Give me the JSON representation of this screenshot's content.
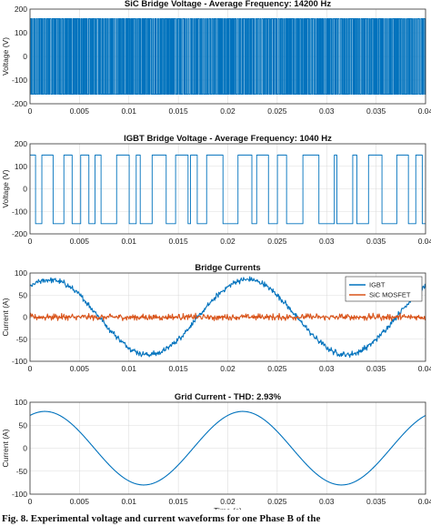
{
  "chart_data": [
    {
      "type": "line",
      "title": "SiC Bridge Voltage - Average Frequency: 14200 Hz",
      "xlabel": "",
      "ylabel": "Voltage (V)",
      "xlim": [
        0,
        0.04
      ],
      "ylim": [
        -200,
        200
      ],
      "xticks": [
        "0",
        "0.005",
        "0.01",
        "0.015",
        "0.02",
        "0.025",
        "0.03",
        "0.035",
        "0.04"
      ],
      "yticks": [
        "-200",
        "-100",
        "0",
        "100",
        "200"
      ],
      "grid": true,
      "series": [
        {
          "color": "#0072bd",
          "waveform": "pwm",
          "switching_frequency_hz": 14200,
          "levels": [
            160,
            -160
          ]
        }
      ]
    },
    {
      "type": "line",
      "title": "IGBT Bridge Voltage - Average Frequency: 1040 Hz",
      "xlabel": "",
      "ylabel": "Voltage (V)",
      "xlim": [
        0,
        0.04
      ],
      "ylim": [
        -200,
        200
      ],
      "xticks": [
        "0",
        "0.005",
        "0.01",
        "0.015",
        "0.02",
        "0.025",
        "0.03",
        "0.035",
        "0.04"
      ],
      "yticks": [
        "-200",
        "-100",
        "0",
        "100",
        "200"
      ],
      "grid": true,
      "series": [
        {
          "color": "#0072bd",
          "waveform": "pwm",
          "switching_frequency_hz": 1040,
          "levels": [
            150,
            -155
          ]
        }
      ]
    },
    {
      "type": "line",
      "title": "Bridge Currents",
      "xlabel": "",
      "ylabel": "Current (A)",
      "xlim": [
        0,
        0.04
      ],
      "ylim": [
        -100,
        100
      ],
      "xticks": [
        "0",
        "0.005",
        "0.01",
        "0.015",
        "0.02",
        "0.025",
        "0.03",
        "0.035",
        "0.04"
      ],
      "yticks": [
        "-100",
        "-50",
        "0",
        "50",
        "100"
      ],
      "grid": true,
      "legend": "top-right",
      "series": [
        {
          "name": "IGBT",
          "color": "#0072bd",
          "amplitude": 85,
          "phase_ref_x": 0.002,
          "ripple": 8
        },
        {
          "name": "SiC MOSFET",
          "color": "#d95319",
          "amplitude": 0,
          "ripple": 9
        }
      ]
    },
    {
      "type": "line",
      "title": "Grid Current - THD: 2.93%",
      "xlabel": "Time (s)",
      "ylabel": "Current (A)",
      "xlim": [
        0,
        0.04
      ],
      "ylim": [
        -100,
        100
      ],
      "xticks": [
        "0",
        "0.005",
        "0.01",
        "0.015",
        "0.02",
        "0.025",
        "0.03",
        "0.035",
        "0.04"
      ],
      "yticks": [
        "-100",
        "-50",
        "0",
        "50",
        "100"
      ],
      "grid": true,
      "series": [
        {
          "color": "#0072bd",
          "amplitude": 80,
          "frequency_hz": 50,
          "phase_ref_x": 0.0015
        }
      ]
    }
  ],
  "caption": "Fig. 8. Experimental voltage and current waveforms for one Phase B of the"
}
